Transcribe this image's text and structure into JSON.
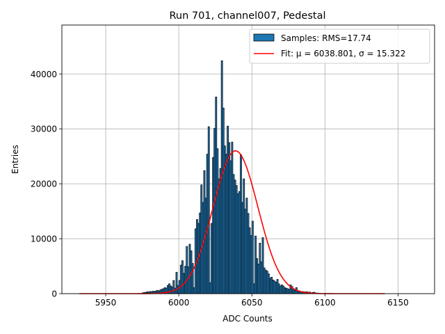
{
  "chart_data": {
    "type": "bar",
    "title": "Run 701, channel007, Pedestal",
    "xlabel": "ADC Counts",
    "ylabel": "Entries",
    "xlim": [
      5920,
      6175
    ],
    "ylim": [
      0,
      48900
    ],
    "x_ticks": [
      5950,
      6000,
      6050,
      6100,
      6150
    ],
    "y_ticks": [
      0,
      10000,
      20000,
      30000,
      40000
    ],
    "grid": true,
    "legend_position": "top-right",
    "bin_width": 1,
    "histogram": {
      "name": "Samples: RMS=17.74",
      "color": "#1f77b4",
      "edge_color": "#000000",
      "bins": [
        [
          5975,
          150
        ],
        [
          5976,
          200
        ],
        [
          5977,
          250
        ],
        [
          5978,
          350
        ],
        [
          5979,
          300
        ],
        [
          5980,
          400
        ],
        [
          5981,
          350
        ],
        [
          5982,
          450
        ],
        [
          5983,
          400
        ],
        [
          5984,
          500
        ],
        [
          5985,
          600
        ],
        [
          5986,
          500
        ],
        [
          5987,
          700
        ],
        [
          5988,
          800
        ],
        [
          5989,
          900
        ],
        [
          5990,
          1100
        ],
        [
          5991,
          1000
        ],
        [
          5992,
          1500
        ],
        [
          5993,
          1800
        ],
        [
          5994,
          1400
        ],
        [
          5995,
          1200
        ],
        [
          5996,
          2400
        ],
        [
          5997,
          1000
        ],
        [
          5998,
          3900
        ],
        [
          5999,
          1500
        ],
        [
          6000,
          2400
        ],
        [
          6001,
          5200
        ],
        [
          6002,
          6000
        ],
        [
          6003,
          3700
        ],
        [
          6004,
          5000
        ],
        [
          6005,
          8600
        ],
        [
          6006,
          4900
        ],
        [
          6007,
          9000
        ],
        [
          6008,
          7800
        ],
        [
          6009,
          5500
        ],
        [
          6010,
          1100
        ],
        [
          6011,
          11800
        ],
        [
          6012,
          13500
        ],
        [
          6013,
          12800
        ],
        [
          6014,
          14700
        ],
        [
          6015,
          19800
        ],
        [
          6016,
          16600
        ],
        [
          6017,
          22400
        ],
        [
          6018,
          17400
        ],
        [
          6019,
          25400
        ],
        [
          6020,
          30400
        ],
        [
          6021,
          2000
        ],
        [
          6022,
          12800
        ],
        [
          6023,
          24800
        ],
        [
          6024,
          30100
        ],
        [
          6025,
          35800
        ],
        [
          6026,
          26400
        ],
        [
          6027,
          20900
        ],
        [
          6028,
          22800
        ],
        [
          6029,
          42400
        ],
        [
          6030,
          33800
        ],
        [
          6031,
          26900
        ],
        [
          6032,
          25400
        ],
        [
          6033,
          30500
        ],
        [
          6034,
          27500
        ],
        [
          6035,
          24200
        ],
        [
          6036,
          27600
        ],
        [
          6037,
          21700
        ],
        [
          6038,
          20700
        ],
        [
          6039,
          19700
        ],
        [
          6040,
          18200
        ],
        [
          6041,
          18600
        ],
        [
          6042,
          25300
        ],
        [
          6043,
          16600
        ],
        [
          6044,
          20900
        ],
        [
          6045,
          15400
        ],
        [
          6046,
          17400
        ],
        [
          6047,
          14600
        ],
        [
          6048,
          12000
        ],
        [
          6049,
          10600
        ],
        [
          6050,
          13200
        ],
        [
          6051,
          1800
        ],
        [
          6052,
          10500
        ],
        [
          6053,
          6400
        ],
        [
          6054,
          5400
        ],
        [
          6055,
          9200
        ],
        [
          6056,
          5800
        ],
        [
          6057,
          10200
        ],
        [
          6058,
          4700
        ],
        [
          6059,
          4300
        ],
        [
          6060,
          4100
        ],
        [
          6061,
          3600
        ],
        [
          6062,
          2800
        ],
        [
          6063,
          3000
        ],
        [
          6064,
          2500
        ],
        [
          6065,
          2300
        ],
        [
          6066,
          2100
        ],
        [
          6067,
          2600
        ],
        [
          6068,
          1800
        ],
        [
          6069,
          1400
        ],
        [
          6070,
          1600
        ],
        [
          6071,
          1400
        ],
        [
          6072,
          1100
        ],
        [
          6073,
          1000
        ],
        [
          6074,
          900
        ],
        [
          6075,
          800
        ],
        [
          6076,
          1600
        ],
        [
          6077,
          1300
        ],
        [
          6078,
          700
        ],
        [
          6079,
          600
        ],
        [
          6080,
          1100
        ],
        [
          6081,
          500
        ],
        [
          6082,
          500
        ],
        [
          6083,
          400
        ],
        [
          6084,
          400
        ],
        [
          6085,
          350
        ],
        [
          6086,
          300
        ],
        [
          6087,
          350
        ],
        [
          6088,
          250
        ],
        [
          6089,
          300
        ],
        [
          6090,
          150
        ],
        [
          6091,
          200
        ],
        [
          6092,
          250
        ],
        [
          6093,
          150
        ],
        [
          6094,
          100
        ],
        [
          6095,
          100
        ]
      ]
    },
    "fit": {
      "name": "Fit: μ = 6038.801, σ = 15.322",
      "color": "#ff0000",
      "mu": 6038.801,
      "sigma": 15.322,
      "amplitude": 26000,
      "x_range": [
        5932,
        6141
      ]
    }
  }
}
